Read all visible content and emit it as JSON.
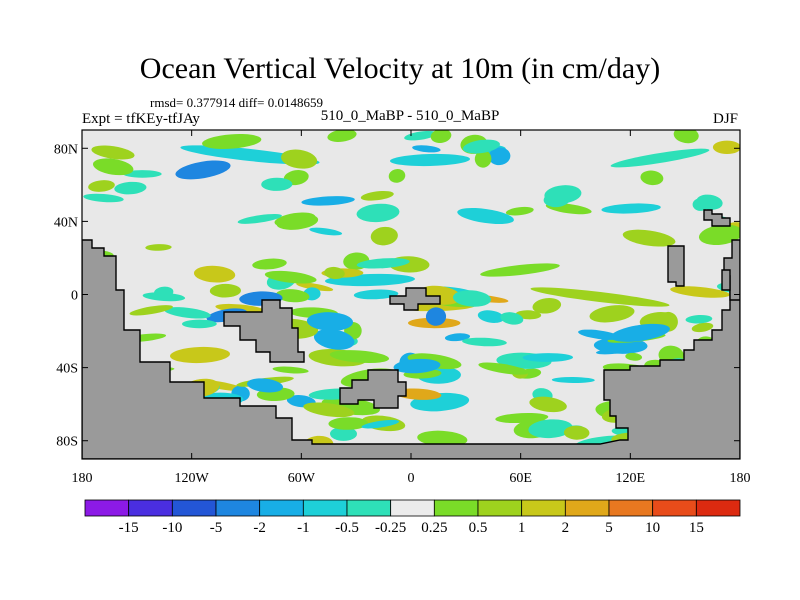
{
  "chart_data": {
    "type": "heatmap",
    "title": "Ocean Vertical Velocity at 10m (in cm/day)",
    "stats": "rmsd= 0.377914  diff= 0.0148659",
    "subtitle_left": "Expt = tfKEy-tfJAy",
    "subtitle_center": "510_0_MaBP - 510_0_MaBP",
    "subtitle_right": "DJF",
    "xlim": [
      -180,
      180
    ],
    "ylim": [
      -90,
      90
    ],
    "x_ticks": [
      {
        "value": -180,
        "label": "180"
      },
      {
        "value": -120,
        "label": "120W"
      },
      {
        "value": -60,
        "label": "60W"
      },
      {
        "value": 0,
        "label": "0"
      },
      {
        "value": 60,
        "label": "60E"
      },
      {
        "value": 120,
        "label": "120E"
      },
      {
        "value": 180,
        "label": "180"
      }
    ],
    "y_ticks": [
      {
        "value": 80,
        "label": "80N"
      },
      {
        "value": 40,
        "label": "40N"
      },
      {
        "value": 0,
        "label": "0"
      },
      {
        "value": -40,
        "label": "40S"
      },
      {
        "value": -80,
        "label": "80S"
      }
    ],
    "colorbar": {
      "labels": [
        "-15",
        "-10",
        "-5",
        "-2",
        "-1",
        "-0.5",
        "-0.25",
        "0.25",
        "0.5",
        "1",
        "2",
        "5",
        "10",
        "15"
      ],
      "colors": [
        "#8c1ae6",
        "#4a2ee0",
        "#2356d6",
        "#1e86e0",
        "#18aee6",
        "#1ed0d8",
        "#2ee0b8",
        "#ececec",
        "#7adc28",
        "#9ed21e",
        "#c8c81a",
        "#e0a81a",
        "#e87820",
        "#e84c1a",
        "#dc2a10"
      ]
    },
    "colors": {
      "ocean_background": "#e8e8e8",
      "land": "#9a9a9a",
      "coast": "#000000"
    }
  }
}
